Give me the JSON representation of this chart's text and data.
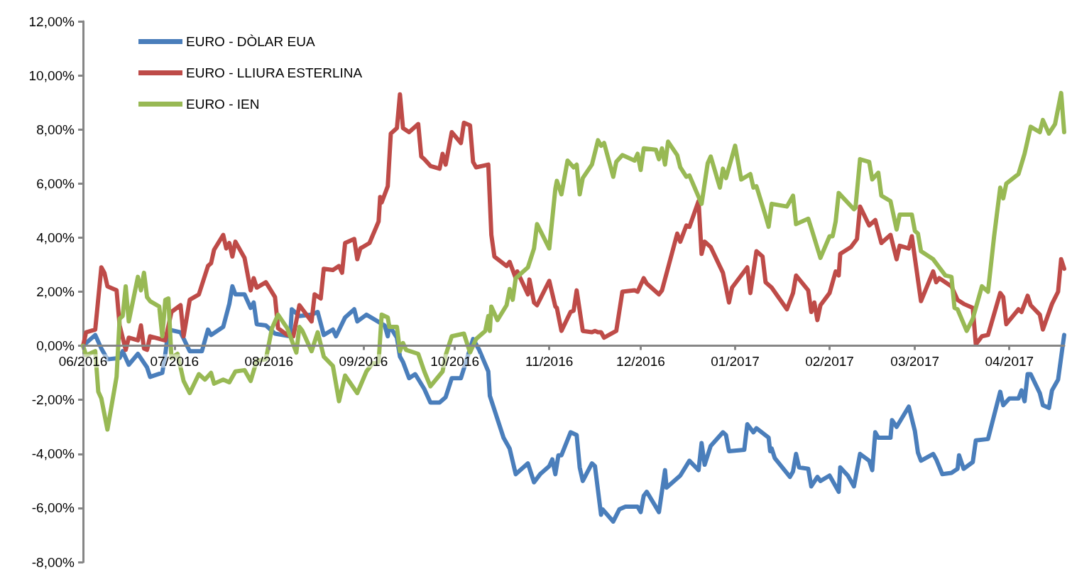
{
  "chart_data": {
    "type": "line",
    "xlim": [
      "2016-06-01",
      "2017-04-19"
    ],
    "xticks": [
      {
        "value": "2016-06-01",
        "label": "06/2016"
      },
      {
        "value": "2016-07-01",
        "label": "07/2016"
      },
      {
        "value": "2016-08-01",
        "label": "08/2016"
      },
      {
        "value": "2016-09-01",
        "label": "09/2016"
      },
      {
        "value": "2016-10-01",
        "label": "10/2016"
      },
      {
        "value": "2016-11-01",
        "label": "11/2016"
      },
      {
        "value": "2016-12-01",
        "label": "12/2016"
      },
      {
        "value": "2017-01-01",
        "label": "01/2017"
      },
      {
        "value": "2017-02-01",
        "label": "02/2017"
      },
      {
        "value": "2017-03-01",
        "label": "03/2017"
      },
      {
        "value": "2017-04-01",
        "label": "04/2017"
      }
    ],
    "ylim": [
      -8,
      12
    ],
    "yticks": [
      {
        "value": -8,
        "label": "-8,00%"
      },
      {
        "value": -6,
        "label": "-6,00%"
      },
      {
        "value": -4,
        "label": "-4,00%"
      },
      {
        "value": -2,
        "label": "-2,00%"
      },
      {
        "value": 0,
        "label": "0,00%"
      },
      {
        "value": 2,
        "label": "2,00%"
      },
      {
        "value": 4,
        "label": "4,00%"
      },
      {
        "value": 6,
        "label": "6,00%"
      },
      {
        "value": 8,
        "label": "8,00%"
      },
      {
        "value": 10,
        "label": "10,00%"
      },
      {
        "value": 12,
        "label": "12,00%"
      }
    ],
    "grid": false,
    "legend": "top left",
    "marker": "none",
    "line_style": "solid",
    "series": [
      {
        "name": "EURO - DÒLAR EUA",
        "color": "#4a7ebb",
        "x": [
          "2016-06-01",
          "2016-06-05",
          "2016-06-07",
          "2016-06-09",
          "2016-06-13",
          "2016-06-14",
          "2016-06-16",
          "2016-06-19",
          "2016-06-22",
          "2016-06-23",
          "2016-06-27",
          "2016-06-28",
          "2016-06-29",
          "2016-07-03",
          "2016-07-06",
          "2016-07-10",
          "2016-07-12",
          "2016-07-13",
          "2016-07-17",
          "2016-07-19",
          "2016-07-20",
          "2016-07-21",
          "2016-07-24",
          "2016-07-26",
          "2016-07-27",
          "2016-07-28",
          "2016-07-31",
          "2016-08-03",
          "2016-08-08",
          "2016-08-08T12:00",
          "2016-08-11",
          "2016-08-15",
          "2016-08-17",
          "2016-08-19",
          "2016-08-22",
          "2016-08-23",
          "2016-08-26",
          "2016-08-29",
          "2016-08-30",
          "2016-09-02",
          "2016-09-08",
          "2016-09-09",
          "2016-09-09T12:00",
          "2016-09-12",
          "2016-09-13",
          "2016-09-14",
          "2016-09-16",
          "2016-09-18",
          "2016-09-21",
          "2016-09-23",
          "2016-09-26",
          "2016-09-28",
          "2016-09-30",
          "2016-10-03",
          "2016-10-07",
          "2016-10-09",
          "2016-10-12",
          "2016-10-12T12:00",
          "2016-10-17",
          "2016-10-19",
          "2016-10-21",
          "2016-10-25",
          "2016-10-27",
          "2016-10-29",
          "2016-11-01",
          "2016-11-02",
          "2016-11-03",
          "2016-11-04",
          "2016-11-05",
          "2016-11-08",
          "2016-11-10",
          "2016-11-11",
          "2016-11-12",
          "2016-11-15",
          "2016-11-16",
          "2016-11-18",
          "2016-11-18T12:00",
          "2016-11-22",
          "2016-11-24",
          "2016-11-26",
          "2016-11-30",
          "2016-12-01",
          "2016-12-02",
          "2016-12-03",
          "2016-12-07",
          "2016-12-09",
          "2016-12-09T12:00",
          "2016-12-14",
          "2016-12-17",
          "2016-12-20",
          "2016-12-21",
          "2016-12-22",
          "2016-12-24",
          "2016-12-28",
          "2016-12-29",
          "2016-12-30",
          "2017-01-04",
          "2017-01-05",
          "2017-01-07",
          "2017-01-08",
          "2017-01-12",
          "2017-01-12T12:00",
          "2017-01-13",
          "2017-01-14",
          "2017-01-19",
          "2017-01-20",
          "2017-01-21",
          "2017-01-22",
          "2017-01-25",
          "2017-01-26",
          "2017-01-28",
          "2017-01-29",
          "2017-02-01",
          "2017-02-04",
          "2017-02-04T12:00",
          "2017-02-07",
          "2017-02-09",
          "2017-02-11",
          "2017-02-14",
          "2017-02-15",
          "2017-02-16",
          "2017-02-17",
          "2017-02-21",
          "2017-02-21T12:00",
          "2017-02-23",
          "2017-02-27",
          "2017-03-01",
          "2017-03-02",
          "2017-03-03",
          "2017-03-07",
          "2017-03-08",
          "2017-03-10",
          "2017-03-13",
          "2017-03-15",
          "2017-03-15T12:00",
          "2017-03-17",
          "2017-03-20",
          "2017-03-21",
          "2017-03-25",
          "2017-03-29",
          "2017-03-30",
          "2017-04-01",
          "2017-04-04",
          "2017-04-05",
          "2017-04-06",
          "2017-04-07",
          "2017-04-08",
          "2017-04-11",
          "2017-04-12",
          "2017-04-14",
          "2017-04-15",
          "2017-04-17",
          "2017-04-19"
        ],
        "values": [
          0,
          0.4,
          -0.1,
          -0.5,
          -0.45,
          -0.2,
          -0.7,
          -0.3,
          -0.8,
          -1.15,
          -1,
          -0.3,
          0.6,
          0.5,
          -0.2,
          -0.2,
          0.6,
          0.4,
          0.7,
          1.55,
          2.2,
          1.9,
          1.9,
          1.4,
          1.6,
          0.8,
          0.75,
          0.45,
          0.35,
          1.35,
          1.1,
          1.15,
          1.25,
          0.4,
          0.6,
          0.35,
          1.05,
          1.35,
          0.9,
          1.15,
          0.75,
          0.35,
          0.75,
          0.3,
          -0.4,
          -0.6,
          -1.2,
          -1.05,
          -1.6,
          -2.1,
          -2.1,
          -1.9,
          -1.2,
          -1.2,
          0.25,
          -0.15,
          -0.95,
          -1.85,
          -3.4,
          -3.8,
          -4.75,
          -4.35,
          -5.05,
          -4.75,
          -4.45,
          -4.2,
          -4.75,
          -4.05,
          -4.05,
          -3.2,
          -3.3,
          -4.5,
          -5,
          -4.35,
          -4.45,
          -6.25,
          -6.05,
          -6.5,
          -6.05,
          -5.95,
          -5.95,
          -6.15,
          -5.55,
          -5.4,
          -6.15,
          -4.6,
          -5.25,
          -4.8,
          -4.25,
          -4.6,
          -3.6,
          -4.4,
          -3.7,
          -3.2,
          -3.3,
          -3.9,
          -3.85,
          -2.9,
          -3.2,
          -3.05,
          -3.4,
          -3.9,
          -3.8,
          -4.15,
          -4.85,
          -4.65,
          -4,
          -4.5,
          -4.55,
          -5.2,
          -4.85,
          -5,
          -4.8,
          -5.4,
          -4.5,
          -4.8,
          -5.2,
          -4,
          -4.25,
          -4.6,
          -3.2,
          -3.4,
          -3.4,
          -2.75,
          -3,
          -2.25,
          -3.15,
          -3.95,
          -4.25,
          -4,
          -4.2,
          -4.75,
          -4.7,
          -4.55,
          -4.05,
          -4.55,
          -4.3,
          -3.5,
          -3.45,
          -1.7,
          -2.2,
          -1.95,
          -1.95,
          -1.65,
          -2.05,
          -1.05,
          -1.05,
          -1.75,
          -2.2,
          -2.3,
          -1.65,
          -1.25,
          0.4
        ]
      },
      {
        "name": "EURO - LLIURA ESTERLINA",
        "color": "#be4b48",
        "x": [
          "2016-06-01",
          "2016-06-02",
          "2016-06-05",
          "2016-06-07",
          "2016-06-08",
          "2016-06-09",
          "2016-06-12",
          "2016-06-13",
          "2016-06-15",
          "2016-06-16",
          "2016-06-19",
          "2016-06-20",
          "2016-06-21",
          "2016-06-22",
          "2016-06-23",
          "2016-06-28",
          "2016-06-30",
          "2016-07-03",
          "2016-07-04",
          "2016-07-06",
          "2016-07-09",
          "2016-07-12",
          "2016-07-13",
          "2016-07-14",
          "2016-07-17",
          "2016-07-18",
          "2016-07-19",
          "2016-07-20",
          "2016-07-21",
          "2016-07-24",
          "2016-07-26",
          "2016-07-27",
          "2016-07-28",
          "2016-07-31",
          "2016-08-03",
          "2016-08-04",
          "2016-08-07",
          "2016-08-09",
          "2016-08-11",
          "2016-08-15",
          "2016-08-16",
          "2016-08-18",
          "2016-08-19",
          "2016-08-22",
          "2016-08-24",
          "2016-08-25",
          "2016-08-26",
          "2016-08-29",
          "2016-08-30",
          "2016-08-31",
          "2016-09-03",
          "2016-09-06",
          "2016-09-06T12:00",
          "2016-09-07",
          "2016-09-09",
          "2016-09-10",
          "2016-09-12",
          "2016-09-13",
          "2016-09-14",
          "2016-09-16",
          "2016-09-19",
          "2016-09-20",
          "2016-09-21",
          "2016-09-23",
          "2016-09-26",
          "2016-09-27",
          "2016-09-28",
          "2016-09-30",
          "2016-10-03",
          "2016-10-04",
          "2016-10-06",
          "2016-10-07",
          "2016-10-08",
          "2016-10-12",
          "2016-10-13",
          "2016-10-14",
          "2016-10-18",
          "2016-10-19",
          "2016-10-21",
          "2016-10-21T12:00",
          "2016-10-25",
          "2016-10-25T12:00",
          "2016-10-27",
          "2016-10-28",
          "2016-11-01",
          "2016-11-03",
          "2016-11-03T12:00",
          "2016-11-05",
          "2016-11-08",
          "2016-11-09",
          "2016-11-10",
          "2016-11-12",
          "2016-11-15",
          "2016-11-16",
          "2016-11-17",
          "2016-11-18",
          "2016-11-19",
          "2016-11-23",
          "2016-11-25",
          "2016-11-29",
          "2016-11-30",
          "2016-12-02",
          "2016-12-03",
          "2016-12-07",
          "2016-12-08",
          "2016-12-13",
          "2016-12-14",
          "2016-12-16",
          "2016-12-17",
          "2016-12-20",
          "2016-12-21",
          "2016-12-22",
          "2016-12-24",
          "2016-12-28",
          "2016-12-30",
          "2016-12-31",
          "2017-01-05",
          "2017-01-06",
          "2017-01-08",
          "2017-01-10",
          "2017-01-11",
          "2017-01-13",
          "2017-01-18",
          "2017-01-20",
          "2017-01-21",
          "2017-01-25",
          "2017-01-26",
          "2017-01-27",
          "2017-01-28",
          "2017-01-29",
          "2017-02-01",
          "2017-02-03",
          "2017-02-04",
          "2017-02-04T12:00",
          "2017-02-08",
          "2017-02-10",
          "2017-02-11",
          "2017-02-14",
          "2017-02-16",
          "2017-02-18",
          "2017-02-21",
          "2017-02-22",
          "2017-02-23",
          "2017-02-24",
          "2017-02-27",
          "2017-02-28",
          "2017-03-03",
          "2017-03-07",
          "2017-03-08",
          "2017-03-09",
          "2017-03-13",
          "2017-03-15",
          "2017-03-17",
          "2017-03-20",
          "2017-03-21",
          "2017-03-23",
          "2017-03-25",
          "2017-03-29",
          "2017-03-30",
          "2017-03-31",
          "2017-04-04",
          "2017-04-05",
          "2017-04-07",
          "2017-04-08",
          "2017-04-11",
          "2017-04-12",
          "2017-04-15",
          "2017-04-17",
          "2017-04-18",
          "2017-04-19"
        ],
        "values": [
          0,
          0.5,
          0.6,
          2.9,
          2.7,
          2.2,
          2.05,
          0.75,
          -0.15,
          0.3,
          0.2,
          0.75,
          -0.1,
          -0.15,
          0.35,
          0.2,
          1.25,
          1.5,
          0.35,
          1.7,
          1.9,
          2.95,
          3.05,
          3.55,
          4.1,
          3.6,
          3.8,
          3.3,
          3.85,
          3.25,
          2.05,
          2.5,
          2.15,
          2.35,
          1.8,
          0.65,
          0.4,
          0.35,
          1.5,
          0.9,
          1.9,
          1.75,
          2.85,
          2.8,
          2.95,
          2.7,
          3.8,
          3.95,
          3.2,
          3.6,
          3.8,
          4.6,
          5.5,
          5.3,
          5.9,
          7.85,
          8.05,
          9.3,
          8.05,
          7.9,
          8.2,
          7,
          6.9,
          6.65,
          6.55,
          7.1,
          6.7,
          7.9,
          7.5,
          8.25,
          8.15,
          6.8,
          6.6,
          6.7,
          4.1,
          3.3,
          2.95,
          3.1,
          2.5,
          2.75,
          1.9,
          2.45,
          1.6,
          1.5,
          2.4,
          1.45,
          1.4,
          0.55,
          1.25,
          1.3,
          2.05,
          0.55,
          0.5,
          0.55,
          0.5,
          0.5,
          0.3,
          0.55,
          2,
          2.05,
          2,
          2.5,
          2.3,
          1.9,
          2.05,
          4.15,
          3.85,
          4.45,
          4.4,
          5.35,
          3.4,
          3.85,
          3.65,
          2.7,
          1.6,
          2.15,
          2.9,
          1.95,
          3.5,
          3.3,
          2.35,
          2.15,
          1.35,
          1.95,
          2.6,
          2.05,
          1.25,
          1.6,
          0.95,
          1.5,
          1.95,
          2.75,
          2.6,
          3.4,
          3.65,
          3.95,
          5.15,
          4.45,
          4.65,
          3.8,
          4.1,
          3.65,
          3.2,
          3.7,
          3.6,
          4.05,
          1.65,
          2.75,
          2.35,
          2.5,
          2.2,
          1.7,
          1.55,
          1.4,
          0.05,
          0.35,
          0.4,
          1.95,
          1.8,
          0.8,
          1.35,
          1.25,
          1.85,
          1.5,
          1.15,
          0.6,
          1.55,
          2,
          3.2,
          2.85
        ]
      },
      {
        "name": "EURO - IEN",
        "color": "#98b954",
        "x": [
          "2016-06-01",
          "2016-06-02",
          "2016-06-05",
          "2016-06-06",
          "2016-06-07",
          "2016-06-09",
          "2016-06-12",
          "2016-06-13",
          "2016-06-14",
          "2016-06-15",
          "2016-06-16",
          "2016-06-19",
          "2016-06-20",
          "2016-06-21",
          "2016-06-22",
          "2016-06-23",
          "2016-06-26",
          "2016-06-27",
          "2016-06-28",
          "2016-06-29",
          "2016-06-30",
          "2016-07-02",
          "2016-07-04",
          "2016-07-06",
          "2016-07-09",
          "2016-07-11",
          "2016-07-13",
          "2016-07-14",
          "2016-07-17",
          "2016-07-19",
          "2016-07-21",
          "2016-07-24",
          "2016-07-26",
          "2016-07-28",
          "2016-07-31",
          "2016-08-02",
          "2016-08-04",
          "2016-08-07",
          "2016-08-10",
          "2016-08-11",
          "2016-08-12",
          "2016-08-15",
          "2016-08-17",
          "2016-08-19",
          "2016-08-22",
          "2016-08-24",
          "2016-08-26",
          "2016-08-30",
          "2016-09-02",
          "2016-09-04",
          "2016-09-06",
          "2016-09-07",
          "2016-09-09",
          "2016-09-09T12:00",
          "2016-09-12",
          "2016-09-13",
          "2016-09-14",
          "2016-09-15",
          "2016-09-19",
          "2016-09-21",
          "2016-09-23",
          "2016-09-27",
          "2016-09-28",
          "2016-09-30",
          "2016-10-04",
          "2016-10-06",
          "2016-10-08",
          "2016-10-11",
          "2016-10-12",
          "2016-10-12T12:00",
          "2016-10-13",
          "2016-10-15",
          "2016-10-18",
          "2016-10-19",
          "2016-10-20",
          "2016-10-21",
          "2016-10-25",
          "2016-10-27",
          "2016-10-28",
          "2016-11-01",
          "2016-11-03",
          "2016-11-03T12:00",
          "2016-11-05",
          "2016-11-07",
          "2016-11-09",
          "2016-11-10",
          "2016-11-11",
          "2016-11-12",
          "2016-11-15",
          "2016-11-17",
          "2016-11-18",
          "2016-11-19",
          "2016-11-22",
          "2016-11-23",
          "2016-11-25",
          "2016-11-29",
          "2016-11-30",
          "2016-12-01",
          "2016-12-02",
          "2016-12-06",
          "2016-12-07",
          "2016-12-08",
          "2016-12-09",
          "2016-12-10",
          "2016-12-13",
          "2016-12-14",
          "2016-12-16",
          "2016-12-17",
          "2016-12-21",
          "2016-12-23",
          "2016-12-24",
          "2016-12-27",
          "2016-12-28",
          "2016-12-29",
          "2017-01-01",
          "2017-01-03",
          "2017-01-06",
          "2017-01-07",
          "2017-01-08",
          "2017-01-11",
          "2017-01-12",
          "2017-01-13",
          "2017-01-18",
          "2017-01-20",
          "2017-01-21",
          "2017-01-25",
          "2017-01-26",
          "2017-01-29",
          "2017-02-01",
          "2017-02-02",
          "2017-02-03",
          "2017-02-04",
          "2017-02-09",
          "2017-02-09T12:00",
          "2017-02-11",
          "2017-02-14",
          "2017-02-15",
          "2017-02-17",
          "2017-02-18",
          "2017-02-21",
          "2017-02-23",
          "2017-02-24",
          "2017-02-28",
          "2017-03-01",
          "2017-03-02",
          "2017-03-03",
          "2017-03-07",
          "2017-03-09",
          "2017-03-11",
          "2017-03-13",
          "2017-03-14",
          "2017-03-15",
          "2017-03-18",
          "2017-03-20",
          "2017-03-23",
          "2017-03-25",
          "2017-03-27",
          "2017-03-29",
          "2017-03-30",
          "2017-03-31",
          "2017-04-04",
          "2017-04-06",
          "2017-04-08",
          "2017-04-11",
          "2017-04-12",
          "2017-04-14",
          "2017-04-16",
          "2017-04-18",
          "2017-04-19"
        ],
        "values": [
          0,
          -0.35,
          -0.2,
          -1.7,
          -1.95,
          -3.1,
          -1.15,
          1,
          1.1,
          2.2,
          0.9,
          2.55,
          2.05,
          2.7,
          1.8,
          1.65,
          1.45,
          0.35,
          1.7,
          1.75,
          -0.45,
          -0.3,
          -1.3,
          -1.75,
          -1.05,
          -1.25,
          -1,
          -1.4,
          -1.25,
          -1.35,
          -0.95,
          -0.9,
          -1.3,
          -0.55,
          -0.5,
          0.65,
          1.15,
          0.65,
          -0.25,
          0.7,
          0.55,
          -0.2,
          0.5,
          -0.4,
          -0.75,
          -2.05,
          -1.1,
          -1.75,
          -0.95,
          -0.65,
          -0.6,
          1.15,
          1.05,
          0.7,
          0.7,
          -0.2,
          0.1,
          -0.15,
          -0.3,
          -0.95,
          -1.5,
          -0.95,
          -0.35,
          0.35,
          0.45,
          -0.25,
          0.25,
          0.55,
          1.1,
          0.55,
          1.45,
          0.95,
          1.5,
          2.1,
          1.7,
          2.5,
          2.9,
          3.6,
          4.5,
          3.6,
          5.8,
          6.1,
          5.6,
          6.85,
          6.6,
          6.7,
          5.6,
          6.2,
          6.7,
          7.6,
          7.4,
          7.5,
          6.25,
          6.8,
          7.05,
          6.85,
          7.1,
          6.5,
          7.3,
          7.25,
          6.9,
          7.3,
          6.7,
          7.55,
          7.05,
          6.6,
          6.25,
          6.3,
          5.25,
          6.75,
          7,
          5.85,
          6.55,
          6.2,
          7.4,
          6.15,
          6.35,
          5.85,
          5.9,
          4.8,
          4.4,
          5.25,
          5.15,
          5.55,
          4.5,
          4.7,
          4.35,
          3.25,
          4.05,
          4.05,
          4.6,
          5.65,
          5.05,
          5.1,
          6.9,
          6.8,
          6.15,
          6.4,
          5.55,
          5.35,
          4.3,
          4.85,
          4.85,
          4.25,
          4.15,
          3.5,
          3.2,
          2.9,
          2.6,
          2.55,
          1.4,
          1.35,
          0.55,
          1,
          2.2,
          2,
          4.05,
          5.85,
          5.45,
          6,
          6.35,
          7.1,
          8.1,
          7.9,
          8.35,
          7.85,
          8.2,
          9.35,
          7.9
        ]
      }
    ]
  }
}
